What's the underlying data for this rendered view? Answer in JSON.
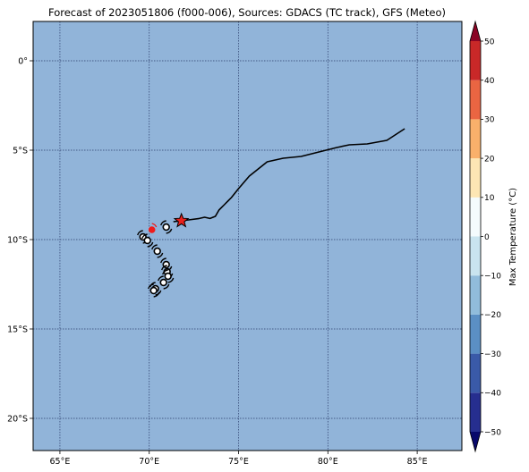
{
  "title": "Forecast of 2023051806 (f000-006), Sources: GDACS (TC track), GFS (Meteo)",
  "map": {
    "ocean_color": "#91b4d9",
    "grid_color": "#2b3c6b",
    "lon_range": [
      63.5,
      87.5
    ],
    "lat_range": [
      -21.8,
      2.2
    ],
    "lon_ticks": [
      {
        "value": 65,
        "label": "65°E"
      },
      {
        "value": 70,
        "label": "70°E"
      },
      {
        "value": 75,
        "label": "75°E"
      },
      {
        "value": 80,
        "label": "80°E"
      },
      {
        "value": 85,
        "label": "85°E"
      }
    ],
    "lat_ticks": [
      {
        "value": 0,
        "label": "0°"
      },
      {
        "value": -5,
        "label": "5°S"
      },
      {
        "value": -10,
        "label": "10°S"
      },
      {
        "value": -15,
        "label": "15°S"
      },
      {
        "value": -20,
        "label": "20°S"
      }
    ],
    "track": [
      [
        84.3,
        -3.8
      ],
      [
        83.3,
        -4.45
      ],
      [
        82.2,
        -4.65
      ],
      [
        81.2,
        -4.7
      ],
      [
        80.5,
        -4.85
      ],
      [
        79.5,
        -5.1
      ],
      [
        78.5,
        -5.35
      ],
      [
        77.5,
        -5.45
      ],
      [
        76.6,
        -5.65
      ],
      [
        75.6,
        -6.45
      ],
      [
        75.0,
        -7.15
      ],
      [
        74.6,
        -7.65
      ],
      [
        74.2,
        -8.05
      ],
      [
        73.9,
        -8.35
      ],
      [
        73.7,
        -8.7
      ],
      [
        73.4,
        -8.82
      ],
      [
        73.1,
        -8.75
      ],
      [
        72.8,
        -8.82
      ],
      [
        72.2,
        -8.9
      ],
      [
        71.8,
        -8.95
      ],
      [
        71.35,
        -9.0
      ]
    ],
    "current_position": {
      "lon": 71.8,
      "lat": -8.95,
      "color": "#e8221e"
    },
    "red_marker": {
      "lon": 70.15,
      "lat": -9.45,
      "color": "#ee1c1c"
    },
    "storm_symbols": [
      {
        "lon": 70.95,
        "lat": -9.3
      },
      {
        "lon": 69.65,
        "lat": -9.85
      },
      {
        "lon": 69.9,
        "lat": -10.05
      },
      {
        "lon": 70.45,
        "lat": -10.65
      },
      {
        "lon": 70.95,
        "lat": -11.4
      },
      {
        "lon": 71.0,
        "lat": -11.8
      },
      {
        "lon": 71.05,
        "lat": -12.05
      },
      {
        "lon": 70.8,
        "lat": -12.4
      },
      {
        "lon": 70.35,
        "lat": -12.75
      },
      {
        "lon": 70.25,
        "lat": -12.85
      }
    ]
  },
  "colorbar": {
    "label": "Max Temperature (°C)",
    "min": -55,
    "max": 55,
    "ticks": [
      {
        "value": 50,
        "label": "50"
      },
      {
        "value": 40,
        "label": "40"
      },
      {
        "value": 30,
        "label": "30"
      },
      {
        "value": 20,
        "label": "20"
      },
      {
        "value": 10,
        "label": "10"
      },
      {
        "value": 0,
        "label": "0"
      },
      {
        "value": -10,
        "label": "−10"
      },
      {
        "value": -20,
        "label": "−20"
      },
      {
        "value": -30,
        "label": "−30"
      },
      {
        "value": -40,
        "label": "−40"
      },
      {
        "value": -50,
        "label": "−50"
      }
    ],
    "bins": [
      {
        "from": -55,
        "to": -50,
        "color": "#08086b"
      },
      {
        "from": -50,
        "to": -40,
        "color": "#262e8f"
      },
      {
        "from": -40,
        "to": -30,
        "color": "#3a5aa8"
      },
      {
        "from": -30,
        "to": -20,
        "color": "#5b8fc4"
      },
      {
        "from": -20,
        "to": -10,
        "color": "#91bcdb"
      },
      {
        "from": -10,
        "to": 0,
        "color": "#c9e4ef"
      },
      {
        "from": 0,
        "to": 10,
        "color": "#f4fbfd"
      },
      {
        "from": 10,
        "to": 20,
        "color": "#fde6b4"
      },
      {
        "from": 20,
        "to": 30,
        "color": "#f9b06b"
      },
      {
        "from": 30,
        "to": 40,
        "color": "#ea6542"
      },
      {
        "from": 40,
        "to": 50,
        "color": "#c92828"
      },
      {
        "from": 50,
        "to": 55,
        "color": "#8a0424"
      }
    ]
  }
}
